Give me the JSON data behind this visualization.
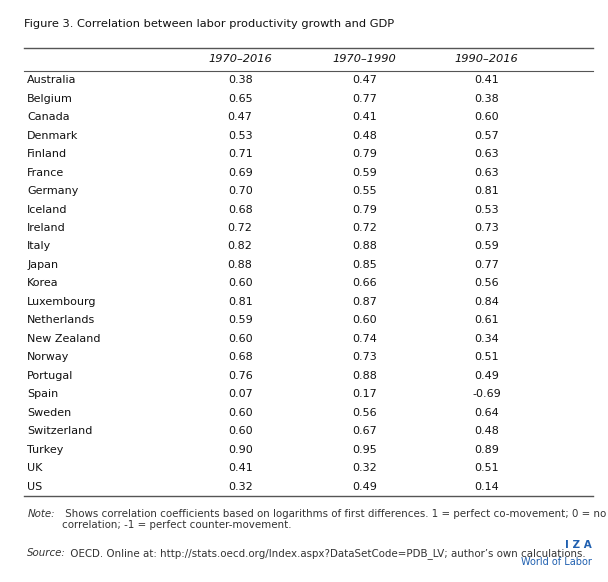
{
  "title": "Figure 3. Correlation between labor productivity growth and GDP",
  "columns": [
    "1970–2016",
    "1970–1990",
    "1990–2016"
  ],
  "countries": [
    "Australia",
    "Belgium",
    "Canada",
    "Denmark",
    "Finland",
    "France",
    "Germany",
    "Iceland",
    "Ireland",
    "Italy",
    "Japan",
    "Korea",
    "Luxembourg",
    "Netherlands",
    "New Zealand",
    "Norway",
    "Portugal",
    "Spain",
    "Sweden",
    "Switzerland",
    "Turkey",
    "UK",
    "US"
  ],
  "values": [
    [
      0.38,
      0.47,
      0.41
    ],
    [
      0.65,
      0.77,
      0.38
    ],
    [
      0.47,
      0.41,
      0.6
    ],
    [
      0.53,
      0.48,
      0.57
    ],
    [
      0.71,
      0.79,
      0.63
    ],
    [
      0.69,
      0.59,
      0.63
    ],
    [
      0.7,
      0.55,
      0.81
    ],
    [
      0.68,
      0.79,
      0.53
    ],
    [
      0.72,
      0.72,
      0.73
    ],
    [
      0.82,
      0.88,
      0.59
    ],
    [
      0.88,
      0.85,
      0.77
    ],
    [
      0.6,
      0.66,
      0.56
    ],
    [
      0.81,
      0.87,
      0.84
    ],
    [
      0.59,
      0.6,
      0.61
    ],
    [
      0.6,
      0.74,
      0.34
    ],
    [
      0.68,
      0.73,
      0.51
    ],
    [
      0.76,
      0.88,
      0.49
    ],
    [
      0.07,
      0.17,
      -0.69
    ],
    [
      0.6,
      0.56,
      0.64
    ],
    [
      0.6,
      0.67,
      0.48
    ],
    [
      0.9,
      0.95,
      0.89
    ],
    [
      0.41,
      0.32,
      0.51
    ],
    [
      0.32,
      0.49,
      0.14
    ]
  ],
  "note_italic": "Note:",
  "note_rest": " Shows correlation coefficients based on logarithms of first differences. 1 = perfect co-movement; 0 = no\ncorrelation; -1 = perfect counter-movement.",
  "source_italic": "Source:",
  "source_rest": " OECD. Online at: http://stats.oecd.org/Index.aspx?DataSetCode=PDB_LV; author’s own calculations.",
  "bg_color": "#ffffff",
  "border_color": "#3060a0",
  "text_color": "#111111",
  "title_color": "#111111",
  "note_color": "#333333",
  "iza_color": "#2060b0",
  "logo_line1": "I Z A",
  "logo_line2": "World of Labor"
}
